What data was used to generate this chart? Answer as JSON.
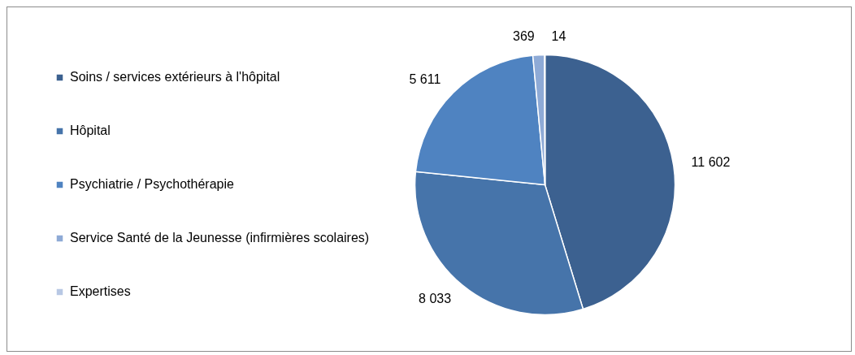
{
  "chart_data": {
    "type": "pie",
    "categories": [
      "Soins / services extérieurs à l'hôpital",
      "Hôpital",
      "Psychiatrie / Psychothérapie",
      "Service Santé de la Jeunesse (infirmières scolaires)",
      "Expertises"
    ],
    "values": [
      11602,
      8033,
      5611,
      369,
      14
    ],
    "colors": [
      "#3c6190",
      "#4674aa",
      "#4f83c1",
      "#8eaad6",
      "#b8c8e4"
    ],
    "value_labels": [
      "11 602",
      "8 033",
      "5 611",
      "369",
      "14"
    ],
    "legend": "left"
  }
}
